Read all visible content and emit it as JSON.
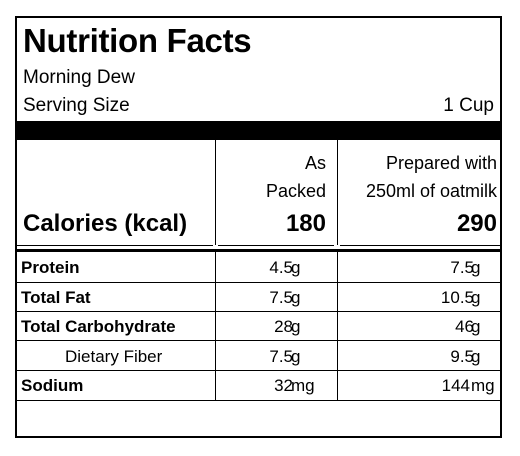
{
  "label": {
    "title": "Nutrition Facts",
    "product_name": "Morning Dew",
    "serving_size_label": "Serving Size",
    "serving_size_value": "1 Cup",
    "columns": [
      {
        "line1": "As",
        "line2": "Packed"
      },
      {
        "line1": "Prepared with",
        "line2": "250ml of oatmilk"
      }
    ],
    "calories": {
      "label": "Calories (kcal)",
      "values": [
        "180",
        "290"
      ]
    },
    "nutrients": [
      {
        "name": "Protein",
        "bold": true,
        "indent": false,
        "values": [
          "4.5",
          "7.5"
        ],
        "unit": "g"
      },
      {
        "name": "Total Fat",
        "bold": true,
        "indent": false,
        "values": [
          "7.5",
          "10.5"
        ],
        "unit": "g"
      },
      {
        "name": "Total Carbohydrate",
        "bold": true,
        "indent": false,
        "values": [
          "28",
          "46"
        ],
        "unit": "g"
      },
      {
        "name": "Dietary Fiber",
        "bold": false,
        "indent": true,
        "values": [
          "7.5",
          "9.5"
        ],
        "unit": "g"
      },
      {
        "name": "Sodium",
        "bold": true,
        "indent": false,
        "values": [
          "32",
          "144"
        ],
        "unit": "mg"
      }
    ]
  }
}
